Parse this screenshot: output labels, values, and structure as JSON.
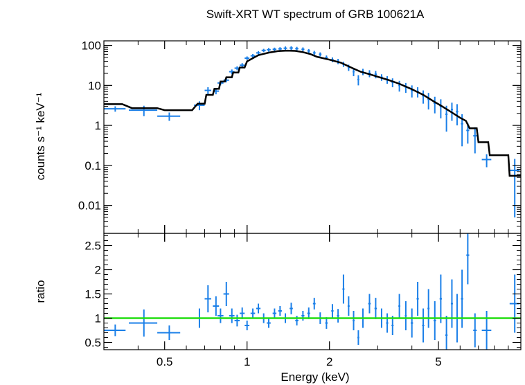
{
  "chart_data": [
    {
      "type": "scatter",
      "panel": "spectrum",
      "title": "Swift-XRT WT spectrum of GRB 100621A",
      "xlabel": "Energy (keV)",
      "ylabel": "counts s⁻¹ keV⁻¹",
      "xscale": "log",
      "yscale": "log",
      "xlim": [
        0.3,
        10
      ],
      "ylim": [
        0.002,
        130
      ],
      "y_ticks": [
        {
          "v": 100,
          "label": "100"
        },
        {
          "v": 10,
          "label": "10"
        },
        {
          "v": 1,
          "label": "1"
        },
        {
          "v": 0.1,
          "label": "0.1"
        },
        {
          "v": 0.01,
          "label": "0.01"
        }
      ],
      "data_color": "#1a7fe8",
      "model_color": "#000000",
      "series": [
        {
          "name": "data",
          "points": [
            [
              0.33,
              2.6,
              0.03,
              0.4
            ],
            [
              0.42,
              2.4,
              0.05,
              0.7
            ],
            [
              0.52,
              1.7,
              0.05,
              0.4
            ],
            [
              0.67,
              3.2,
              0.03,
              0.8
            ],
            [
              0.72,
              7.5,
              0.02,
              1.5
            ],
            [
              0.77,
              7.2,
              0.02,
              1.2
            ],
            [
              0.8,
              11.5,
              0.02,
              1.5
            ],
            [
              0.84,
              13.5,
              0.02,
              1.5
            ],
            [
              0.88,
              22,
              0.02,
              3
            ],
            [
              0.92,
              27,
              0.02,
              3
            ],
            [
              0.96,
              32,
              0.02,
              4
            ],
            [
              1.0,
              48,
              0.02,
              5
            ],
            [
              1.05,
              55,
              0.02,
              6
            ],
            [
              1.1,
              65,
              0.02,
              7
            ],
            [
              1.15,
              75,
              0.02,
              7
            ],
            [
              1.2,
              78,
              0.02,
              8
            ],
            [
              1.26,
              80,
              0.02,
              8
            ],
            [
              1.32,
              82,
              0.02,
              8
            ],
            [
              1.38,
              85,
              0.02,
              9
            ],
            [
              1.45,
              86,
              0.02,
              9
            ],
            [
              1.52,
              83,
              0.02,
              9
            ],
            [
              1.6,
              80,
              0.02,
              9
            ],
            [
              1.68,
              73,
              0.02,
              8
            ],
            [
              1.76,
              65,
              0.02,
              8
            ],
            [
              1.85,
              60,
              0.02,
              7
            ],
            [
              1.95,
              50,
              0.02,
              6
            ],
            [
              2.05,
              44,
              0.02,
              6
            ],
            [
              2.15,
              40,
              0.02,
              6
            ],
            [
              2.25,
              34,
              0.02,
              5
            ],
            [
              2.35,
              28,
              0.02,
              5
            ],
            [
              2.45,
              22,
              0.02,
              5
            ],
            [
              2.55,
              14,
              0.02,
              4
            ],
            [
              2.65,
              22,
              0.02,
              4
            ],
            [
              2.8,
              20,
              0.03,
              4
            ],
            [
              2.95,
              19,
              0.03,
              4
            ],
            [
              3.1,
              16,
              0.03,
              3
            ],
            [
              3.25,
              14,
              0.03,
              3
            ],
            [
              3.4,
              12,
              0.03,
              3
            ],
            [
              3.6,
              10,
              0.03,
              3
            ],
            [
              3.8,
              9,
              0.03,
              2.5
            ],
            [
              4.0,
              7.5,
              0.04,
              2.5
            ],
            [
              4.2,
              7,
              0.04,
              2
            ],
            [
              4.4,
              5.5,
              0.04,
              2
            ],
            [
              4.6,
              4.5,
              0.04,
              2
            ],
            [
              4.85,
              3.6,
              0.05,
              1.6
            ],
            [
              5.1,
              3,
              0.05,
              1.5
            ],
            [
              5.35,
              1.9,
              0.05,
              1.2
            ],
            [
              5.6,
              2.5,
              0.05,
              1.2
            ],
            [
              5.85,
              2.2,
              0.06,
              1.2
            ],
            [
              6.1,
              1.1,
              0.06,
              0.8
            ],
            [
              6.4,
              0.75,
              0.08,
              0.4
            ],
            [
              6.8,
              0.55,
              0.1,
              0.35
            ],
            [
              7.5,
              0.14,
              0.3,
              0.05
            ],
            [
              9.5,
              0.075,
              0.4,
              0.07
            ]
          ]
        },
        {
          "name": "model",
          "steps": [
            [
              0.3,
              3.4
            ],
            [
              0.35,
              3.4
            ],
            [
              0.38,
              2.7
            ],
            [
              0.47,
              2.7
            ],
            [
              0.5,
              2.4
            ],
            [
              0.63,
              2.4
            ],
            [
              0.66,
              3.5
            ],
            [
              0.7,
              3.5
            ],
            [
              0.71,
              5.8
            ],
            [
              0.75,
              5.8
            ],
            [
              0.76,
              8.2
            ],
            [
              0.79,
              8.2
            ],
            [
              0.8,
              12.5
            ],
            [
              0.83,
              12.5
            ],
            [
              0.84,
              16
            ],
            [
              0.88,
              16
            ],
            [
              0.89,
              21
            ],
            [
              0.93,
              21
            ],
            [
              0.94,
              28
            ],
            [
              0.98,
              28
            ],
            [
              1.0,
              40
            ],
            [
              1.05,
              48
            ],
            [
              1.1,
              57
            ],
            [
              1.2,
              66
            ],
            [
              1.3,
              72
            ],
            [
              1.4,
              74
            ],
            [
              1.5,
              73
            ],
            [
              1.6,
              68
            ],
            [
              1.7,
              61
            ],
            [
              1.8,
              52
            ],
            [
              2.0,
              44
            ],
            [
              2.2,
              37
            ],
            [
              2.4,
              28
            ],
            [
              2.6,
              22
            ],
            [
              2.8,
              19
            ],
            [
              3.0,
              16.5
            ],
            [
              3.3,
              13.5
            ],
            [
              3.6,
              11
            ],
            [
              4.0,
              8
            ],
            [
              4.4,
              5.8
            ],
            [
              4.8,
              4
            ],
            [
              5.2,
              2.9
            ],
            [
              5.6,
              2.1
            ],
            [
              6.0,
              1.55
            ],
            [
              6.3,
              1.3
            ],
            [
              6.5,
              0.85
            ],
            [
              6.9,
              0.85
            ],
            [
              7.0,
              0.38
            ],
            [
              7.6,
              0.38
            ],
            [
              7.7,
              0.18
            ],
            [
              9.0,
              0.18
            ],
            [
              9.1,
              0.055
            ],
            [
              10,
              0.055
            ]
          ]
        }
      ]
    },
    {
      "type": "scatter",
      "panel": "ratio",
      "xlabel": "Energy (keV)",
      "ylabel": "ratio",
      "xscale": "log",
      "yscale": "linear",
      "xlim": [
        0.3,
        10
      ],
      "ylim": [
        0.35,
        2.75
      ],
      "x_ticks": [
        {
          "v": 0.5,
          "label": "0.5"
        },
        {
          "v": 1,
          "label": "1"
        },
        {
          "v": 2,
          "label": "2"
        },
        {
          "v": 5,
          "label": "5"
        }
      ],
      "y_ticks": [
        {
          "v": 0.5,
          "label": "0.5"
        },
        {
          "v": 1,
          "label": "1"
        },
        {
          "v": 1.5,
          "label": "1.5"
        },
        {
          "v": 2,
          "label": "2"
        },
        {
          "v": 2.5,
          "label": "2.5"
        }
      ],
      "reference_line": {
        "value": 1.0,
        "color": "#22dd11"
      },
      "data_color": "#1a7fe8",
      "series": [
        {
          "name": "ratio",
          "points": [
            [
              0.33,
              0.75,
              0.03,
              0.12
            ],
            [
              0.42,
              0.9,
              0.05,
              0.28
            ],
            [
              0.52,
              0.7,
              0.05,
              0.15
            ],
            [
              0.67,
              1.0,
              0.03,
              0.2
            ],
            [
              0.72,
              1.4,
              0.02,
              0.28
            ],
            [
              0.77,
              1.25,
              0.02,
              0.2
            ],
            [
              0.8,
              1.05,
              0.02,
              0.15
            ],
            [
              0.84,
              1.5,
              0.02,
              0.25
            ],
            [
              0.88,
              1.05,
              0.02,
              0.15
            ],
            [
              0.92,
              0.95,
              0.02,
              0.12
            ],
            [
              0.96,
              1.1,
              0.02,
              0.12
            ],
            [
              1.0,
              0.85,
              0.02,
              0.1
            ],
            [
              1.05,
              1.1,
              0.02,
              0.1
            ],
            [
              1.1,
              1.2,
              0.02,
              0.1
            ],
            [
              1.15,
              1.0,
              0.02,
              0.1
            ],
            [
              1.2,
              0.9,
              0.02,
              0.1
            ],
            [
              1.26,
              1.1,
              0.02,
              0.1
            ],
            [
              1.32,
              1.15,
              0.02,
              0.1
            ],
            [
              1.38,
              1.0,
              0.02,
              0.1
            ],
            [
              1.45,
              1.2,
              0.02,
              0.12
            ],
            [
              1.52,
              0.95,
              0.02,
              0.1
            ],
            [
              1.6,
              1.05,
              0.02,
              0.1
            ],
            [
              1.68,
              1.1,
              0.02,
              0.12
            ],
            [
              1.76,
              1.3,
              0.02,
              0.12
            ],
            [
              1.85,
              1.0,
              0.02,
              0.12
            ],
            [
              1.95,
              0.9,
              0.02,
              0.12
            ],
            [
              2.05,
              1.15,
              0.02,
              0.14
            ],
            [
              2.15,
              1.05,
              0.02,
              0.14
            ],
            [
              2.25,
              1.6,
              0.02,
              0.3
            ],
            [
              2.35,
              1.25,
              0.02,
              0.2
            ],
            [
              2.45,
              0.95,
              0.02,
              0.2
            ],
            [
              2.55,
              0.6,
              0.02,
              0.15
            ],
            [
              2.65,
              1.0,
              0.02,
              0.2
            ],
            [
              2.8,
              1.3,
              0.03,
              0.2
            ],
            [
              2.95,
              1.2,
              0.03,
              0.22
            ],
            [
              3.1,
              1.0,
              0.03,
              0.2
            ],
            [
              3.25,
              0.9,
              0.03,
              0.2
            ],
            [
              3.4,
              0.85,
              0.03,
              0.2
            ],
            [
              3.6,
              1.25,
              0.03,
              0.25
            ],
            [
              3.8,
              1.05,
              0.03,
              0.3
            ],
            [
              4.0,
              0.9,
              0.04,
              0.3
            ],
            [
              4.2,
              1.4,
              0.04,
              0.35
            ],
            [
              4.4,
              0.85,
              0.04,
              0.35
            ],
            [
              4.6,
              1.2,
              0.04,
              0.4
            ],
            [
              4.85,
              0.95,
              0.05,
              0.4
            ],
            [
              5.1,
              1.4,
              0.05,
              0.5
            ],
            [
              5.35,
              0.65,
              0.05,
              0.4
            ],
            [
              5.6,
              1.3,
              0.05,
              0.5
            ],
            [
              5.85,
              1.0,
              0.06,
              0.5
            ],
            [
              6.1,
              1.4,
              0.06,
              0.6
            ],
            [
              6.4,
              2.3,
              0.08,
              0.6
            ],
            [
              6.8,
              0.75,
              0.1,
              0.35
            ],
            [
              7.5,
              0.75,
              0.3,
              0.4
            ],
            [
              9.5,
              1.3,
              0.4,
              0.6
            ]
          ]
        }
      ]
    }
  ]
}
